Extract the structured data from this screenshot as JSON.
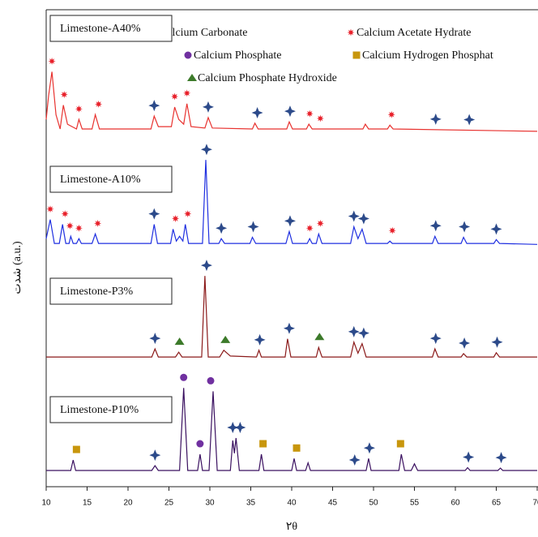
{
  "chart_data": {
    "type": "line",
    "xlabel": "۲θ",
    "ylabel": "شدت (a.u.)",
    "xlim": [
      10,
      70
    ],
    "xticks": [
      10,
      15,
      20,
      25,
      30,
      35,
      40,
      45,
      50,
      55,
      60,
      65,
      70
    ],
    "ylim": [
      0,
      100
    ],
    "legend": [
      {
        "name": "Calcium Carbonate",
        "color": "#2c4a8a",
        "symbol": "star"
      },
      {
        "name": "Calcium Acetate Hydrate",
        "color": "#e8202a",
        "symbol": "asterisk"
      },
      {
        "name": "Calcium Phosphate",
        "color": "#7030a0",
        "symbol": "circle"
      },
      {
        "name": "Calcium Hydrogen Phosphat",
        "color": "#c8960c",
        "symbol": "square"
      },
      {
        "name": "Calcium Phosphate Hydroxide",
        "color": "#3c7a2a",
        "symbol": "triangle"
      }
    ],
    "series": [
      {
        "name": "Limestone-A40%",
        "color": "#e8322f",
        "x": [
          10,
          10.3,
          10.7,
          11.2,
          11.7,
          12.1,
          12.6,
          13.7,
          14,
          14.4,
          15.6,
          16,
          16.5,
          22.8,
          23.2,
          23.7,
          25.3,
          25.7,
          26.2,
          26.8,
          27.2,
          27.7,
          29.4,
          29.8,
          30.3,
          35.2,
          35.5,
          35.9,
          39.4,
          39.7,
          40.1,
          41.8,
          42.1,
          42.5,
          48.7,
          49,
          49.4,
          51.7,
          52,
          52.4,
          70
        ],
        "values": [
          77,
          82,
          87,
          78,
          75,
          80,
          76,
          75,
          77,
          75,
          75,
          78,
          75,
          75,
          77.7,
          75.5,
          75.5,
          79.6,
          77,
          76,
          80.3,
          75.5,
          75.2,
          77.4,
          75.2,
          75,
          76.2,
          75,
          75,
          76.5,
          75,
          75,
          76,
          75,
          75,
          76,
          75,
          75,
          75.8,
          75,
          74.5
        ],
        "markers": [
          {
            "phase": "Calcium Acetate Hydrate",
            "x": [
              10.7,
              12.2,
              14,
              16.4,
              25.7,
              27.2,
              42.2,
              43.5,
              52.2
            ]
          },
          {
            "phase": "Calcium Carbonate",
            "x": [
              23.2,
              29.8,
              35.8,
              39.8,
              57.6,
              61.7
            ]
          }
        ]
      },
      {
        "name": "Limestone-A10%",
        "color": "#1f2fe0",
        "x": [
          10,
          10.5,
          11,
          11.6,
          12,
          12.4,
          12.8,
          13,
          13.3,
          13.7,
          14,
          14.3,
          15.6,
          16,
          16.4,
          22.8,
          23.2,
          23.6,
          25.2,
          25.5,
          25.9,
          26.3,
          26.7,
          27,
          27.4,
          29.1,
          29.5,
          29.9,
          31.1,
          31.4,
          31.8,
          34.9,
          35.2,
          35.6,
          39.3,
          39.7,
          40.1,
          41.9,
          42.2,
          42.5,
          43,
          43.3,
          43.7,
          47.2,
          47.6,
          48.1,
          48.6,
          49.1,
          51.7,
          52,
          52.3,
          57.2,
          57.5,
          57.9,
          60.7,
          61,
          61.4,
          64.7,
          65,
          65.4,
          70
        ],
        "values": [
          52,
          56,
          51,
          51,
          55,
          51,
          51,
          52.5,
          51,
          51,
          52,
          51,
          51,
          53,
          51,
          51,
          55,
          51,
          51,
          54,
          51.5,
          52.5,
          51.5,
          55,
          51,
          51,
          68.5,
          51,
          51,
          52,
          51,
          51,
          52.3,
          51,
          51,
          53.5,
          51,
          51,
          52,
          51,
          51,
          53,
          51,
          51,
          54.5,
          52,
          54,
          51,
          51,
          51.5,
          51,
          51,
          52.5,
          51,
          51,
          52.3,
          51,
          51,
          51.8,
          51,
          50.8
        ],
        "markers": [
          {
            "phase": "Calcium Acetate Hydrate",
            "x": [
              10.5,
              12.3,
              12.9,
              14,
              16.3,
              25.8,
              27.3,
              42.2,
              43.5,
              52.3
            ]
          },
          {
            "phase": "Calcium Carbonate",
            "x": [
              23.2,
              29.6,
              31.4,
              35.3,
              39.8,
              47.6,
              48.8,
              57.6,
              61.1,
              65
            ]
          }
        ]
      },
      {
        "name": "Limestone-P3%",
        "color": "#8b1a1a",
        "x": [
          10,
          22.9,
          23.3,
          23.7,
          25.8,
          26.2,
          26.6,
          29,
          29.4,
          29.8,
          31.2,
          31.7,
          32.5,
          35.7,
          36,
          36.3,
          39.2,
          39.5,
          39.9,
          43,
          43.3,
          43.7,
          47.2,
          47.6,
          48.1,
          48.6,
          49.1,
          57.2,
          57.5,
          57.9,
          60.7,
          61,
          61.4,
          64.7,
          65,
          65.4,
          70
        ],
        "values": [
          27.2,
          27.2,
          28.9,
          27.2,
          27.2,
          28.2,
          27.2,
          27.2,
          44.2,
          27.2,
          27.2,
          28.6,
          27.4,
          27.2,
          28.6,
          27.2,
          27.2,
          31,
          27.2,
          27.2,
          29.2,
          27.2,
          27.2,
          30.3,
          28,
          30,
          27.2,
          27.2,
          28.9,
          27.2,
          27.2,
          27.9,
          27.2,
          27.2,
          28.1,
          27.2,
          27.2
        ],
        "markers": [
          {
            "phase": "Calcium Carbonate",
            "x": [
              23.3,
              29.6,
              36.1,
              39.7,
              47.6,
              48.8,
              57.6,
              61.1,
              65.1
            ]
          },
          {
            "phase": "Calcium Phosphate Hydroxide",
            "x": [
              26.3,
              31.9,
              43.4
            ]
          }
        ]
      },
      {
        "name": "Limestone-P10%",
        "color": "#3a1060",
        "x": [
          10,
          13,
          13.3,
          13.6,
          22.9,
          23.3,
          23.7,
          26.3,
          26.8,
          27.3,
          28.5,
          28.8,
          29.1,
          29.9,
          30.4,
          30.9,
          32.5,
          32.8,
          33,
          33.2,
          33.6,
          36,
          36.3,
          36.6,
          40,
          40.3,
          40.6,
          41.7,
          42,
          42.3,
          49.1,
          49.4,
          49.7,
          53.1,
          53.4,
          53.8,
          54.6,
          55,
          55.4,
          61.2,
          61.5,
          61.8,
          65.2,
          65.5,
          65.8,
          70
        ],
        "values": [
          3.4,
          3.4,
          5.6,
          3.4,
          3.4,
          4.4,
          3.4,
          3.4,
          20.7,
          3.4,
          3.4,
          6.8,
          3.4,
          3.4,
          20,
          3.4,
          3.4,
          9.7,
          7,
          10.2,
          3.4,
          3.4,
          6.8,
          3.4,
          3.4,
          5.9,
          3.4,
          3.4,
          5,
          3.4,
          3.4,
          5.9,
          3.4,
          3.4,
          6.8,
          3.4,
          3.4,
          4.8,
          3.4,
          3.4,
          4,
          3.4,
          3.4,
          3.9,
          3.4,
          3.4
        ],
        "markers": [
          {
            "phase": "Calcium Hydrogen Phosphat",
            "x": [
              13.7,
              36.5,
              40.6,
              53.3
            ]
          },
          {
            "phase": "Calcium Carbonate",
            "x": [
              23.3,
              32.8,
              33.7,
              47.7,
              49.5,
              61.6,
              65.6
            ]
          },
          {
            "phase": "Calcium Phosphate",
            "x": [
              26.8,
              28.8,
              30.1
            ]
          }
        ]
      }
    ]
  }
}
